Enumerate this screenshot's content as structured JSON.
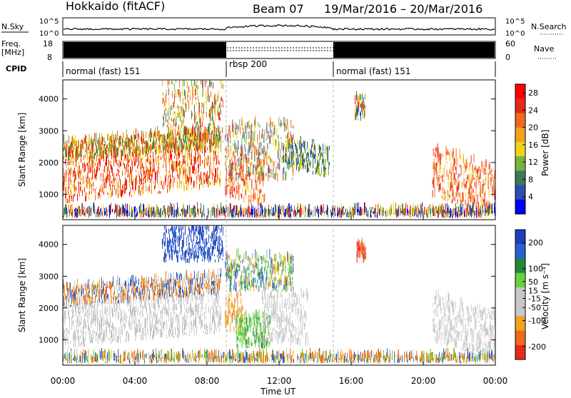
{
  "header": {
    "station": "Hokkaido (fitACF)",
    "beam": "Beam 07",
    "date_range": "19/Mar/2016 – 20/Mar/2016"
  },
  "top_panels": {
    "nsky_label": "N.Sky",
    "nsky_ticks": [
      "10^5",
      "10^0"
    ],
    "nsky_right_ticks": [
      "10^5",
      "10^0"
    ],
    "nsearch_label": "N.Search",
    "freq_label": "Freq.",
    "freq_unit": "[MHz]",
    "freq_ticks": [
      "18",
      "8"
    ],
    "nave_ticks": [
      "60",
      "0"
    ],
    "nave_label": "Nave",
    "cpid_label": "CPID",
    "cpid_segments": [
      {
        "label": "normal (fast) 151",
        "start_h": 0,
        "end_h": 9
      },
      {
        "label": "rbsp 200",
        "start_h": 9,
        "end_h": 15
      },
      {
        "label": "normal (fast) 151",
        "start_h": 15,
        "end_h": 24
      }
    ]
  },
  "colors": {
    "power_scale": [
      "#0000ff",
      "#2a4fb0",
      "#3c7a5a",
      "#7ab33d",
      "#f2d21c",
      "#f2a21c",
      "#f06a1a",
      "#e8281a",
      "#ff0000"
    ],
    "velocity_scale": [
      "#1f3fb8",
      "#2a5fd0",
      "#1e8a3a",
      "#6ad13a",
      "#c8c8c8",
      "#c8c8c8",
      "#f2a21c",
      "#f06a1a",
      "#e8281a"
    ]
  },
  "chart_data": [
    {
      "type": "heatmap",
      "name": "power",
      "title": "",
      "xlabel": "Time UT",
      "ylabel": "Slant Range [km]",
      "x_ticks": [
        "00:00",
        "04:00",
        "08:00",
        "12:00",
        "16:00",
        "20:00",
        "00:00"
      ],
      "x_tick_hours": [
        0,
        4,
        8,
        12,
        16,
        20,
        24
      ],
      "xlim_hours": [
        0,
        24
      ],
      "y_ticks": [
        1000,
        2000,
        3000,
        4000
      ],
      "ylim": [
        200,
        4600
      ],
      "colorbar": {
        "label": "Power [dB]",
        "ticks": [
          28,
          24,
          20,
          16,
          12,
          8,
          4
        ],
        "range": [
          0,
          30
        ]
      },
      "echo_regions": [
        {
          "t0": 0.0,
          "t1": 8.8,
          "r0": 700,
          "r1": 2000,
          "level": "strong",
          "tilt_km": 500
        },
        {
          "t0": 0.0,
          "t1": 8.8,
          "r0": 2000,
          "r1": 2600,
          "level": "moderate",
          "tilt_km": 400
        },
        {
          "t0": 5.5,
          "t1": 8.9,
          "r0": 2600,
          "r1": 4500,
          "level": "moderate",
          "tilt_km": 0
        },
        {
          "t0": 9.0,
          "t1": 11.2,
          "r0": 900,
          "r1": 2400,
          "level": "strong",
          "tilt_km": -400
        },
        {
          "t0": 9.0,
          "t1": 12.8,
          "r0": 1400,
          "r1": 3200,
          "level": "mixed",
          "tilt_km": 0
        },
        {
          "t0": 12.2,
          "t1": 14.8,
          "r0": 1800,
          "r1": 2700,
          "level": "weak",
          "tilt_km": -300
        },
        {
          "t0": 16.2,
          "t1": 16.8,
          "r0": 3300,
          "r1": 4000,
          "level": "mixed",
          "tilt_km": 0
        },
        {
          "t0": 20.5,
          "t1": 24.0,
          "r0": 900,
          "r1": 2400,
          "level": "strong",
          "tilt_km": -600
        },
        {
          "t0": 0.0,
          "t1": 24.0,
          "r0": 250,
          "r1": 450,
          "level": "ground",
          "tilt_km": 0
        }
      ]
    },
    {
      "type": "heatmap",
      "name": "velocity",
      "title": "",
      "xlabel": "Time UT",
      "ylabel": "Slant Range [km]",
      "x_ticks": [
        "00:00",
        "04:00",
        "08:00",
        "12:00",
        "16:00",
        "20:00",
        "00:00"
      ],
      "x_tick_hours": [
        0,
        4,
        8,
        12,
        16,
        20,
        24
      ],
      "xlim_hours": [
        0,
        24
      ],
      "y_ticks": [
        1000,
        2000,
        3000,
        4000
      ],
      "ylim": [
        200,
        4600
      ],
      "colorbar": {
        "label": "Velocity [m s⁻¹]",
        "ticks": [
          200,
          100,
          50,
          15,
          -15,
          -50,
          -100,
          -200
        ],
        "range": [
          -250,
          250
        ]
      },
      "echo_regions": [
        {
          "t0": 0.0,
          "t1": 8.8,
          "r0": 700,
          "r1": 2000,
          "level": "gray",
          "tilt_km": 500
        },
        {
          "t0": 0.0,
          "t1": 8.8,
          "r0": 2000,
          "r1": 2600,
          "level": "graymix",
          "tilt_km": 400
        },
        {
          "t0": 5.5,
          "t1": 8.9,
          "r0": 3400,
          "r1": 4500,
          "level": "blue",
          "tilt_km": 0
        },
        {
          "t0": 9.0,
          "t1": 10.0,
          "r0": 1200,
          "r1": 2400,
          "level": "orange",
          "tilt_km": 0
        },
        {
          "t0": 9.6,
          "t1": 11.5,
          "r0": 700,
          "r1": 1700,
          "level": "green",
          "tilt_km": 0
        },
        {
          "t0": 9.0,
          "t1": 12.8,
          "r0": 2500,
          "r1": 3600,
          "level": "greenmix",
          "tilt_km": 0
        },
        {
          "t0": 11.0,
          "t1": 13.6,
          "r0": 800,
          "r1": 2400,
          "level": "gray",
          "tilt_km": 0
        },
        {
          "t0": 16.3,
          "t1": 16.8,
          "r0": 3400,
          "r1": 4000,
          "level": "red",
          "tilt_km": 0
        },
        {
          "t0": 20.5,
          "t1": 24.0,
          "r0": 900,
          "r1": 2400,
          "level": "gray",
          "tilt_km": -600
        },
        {
          "t0": 0.0,
          "t1": 24.0,
          "r0": 250,
          "r1": 450,
          "level": "ground",
          "tilt_km": 0
        }
      ]
    }
  ]
}
